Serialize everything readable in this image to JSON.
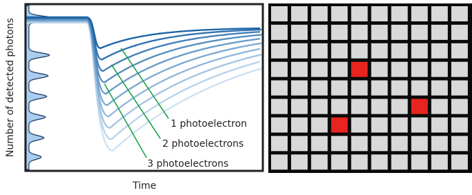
{
  "axes": {
    "x_label": "Time",
    "y_label": "Number of detected photons"
  },
  "annotations": [
    "1 photoelectron",
    "2 photoelectrons",
    "3 photoelectrons"
  ]
}
